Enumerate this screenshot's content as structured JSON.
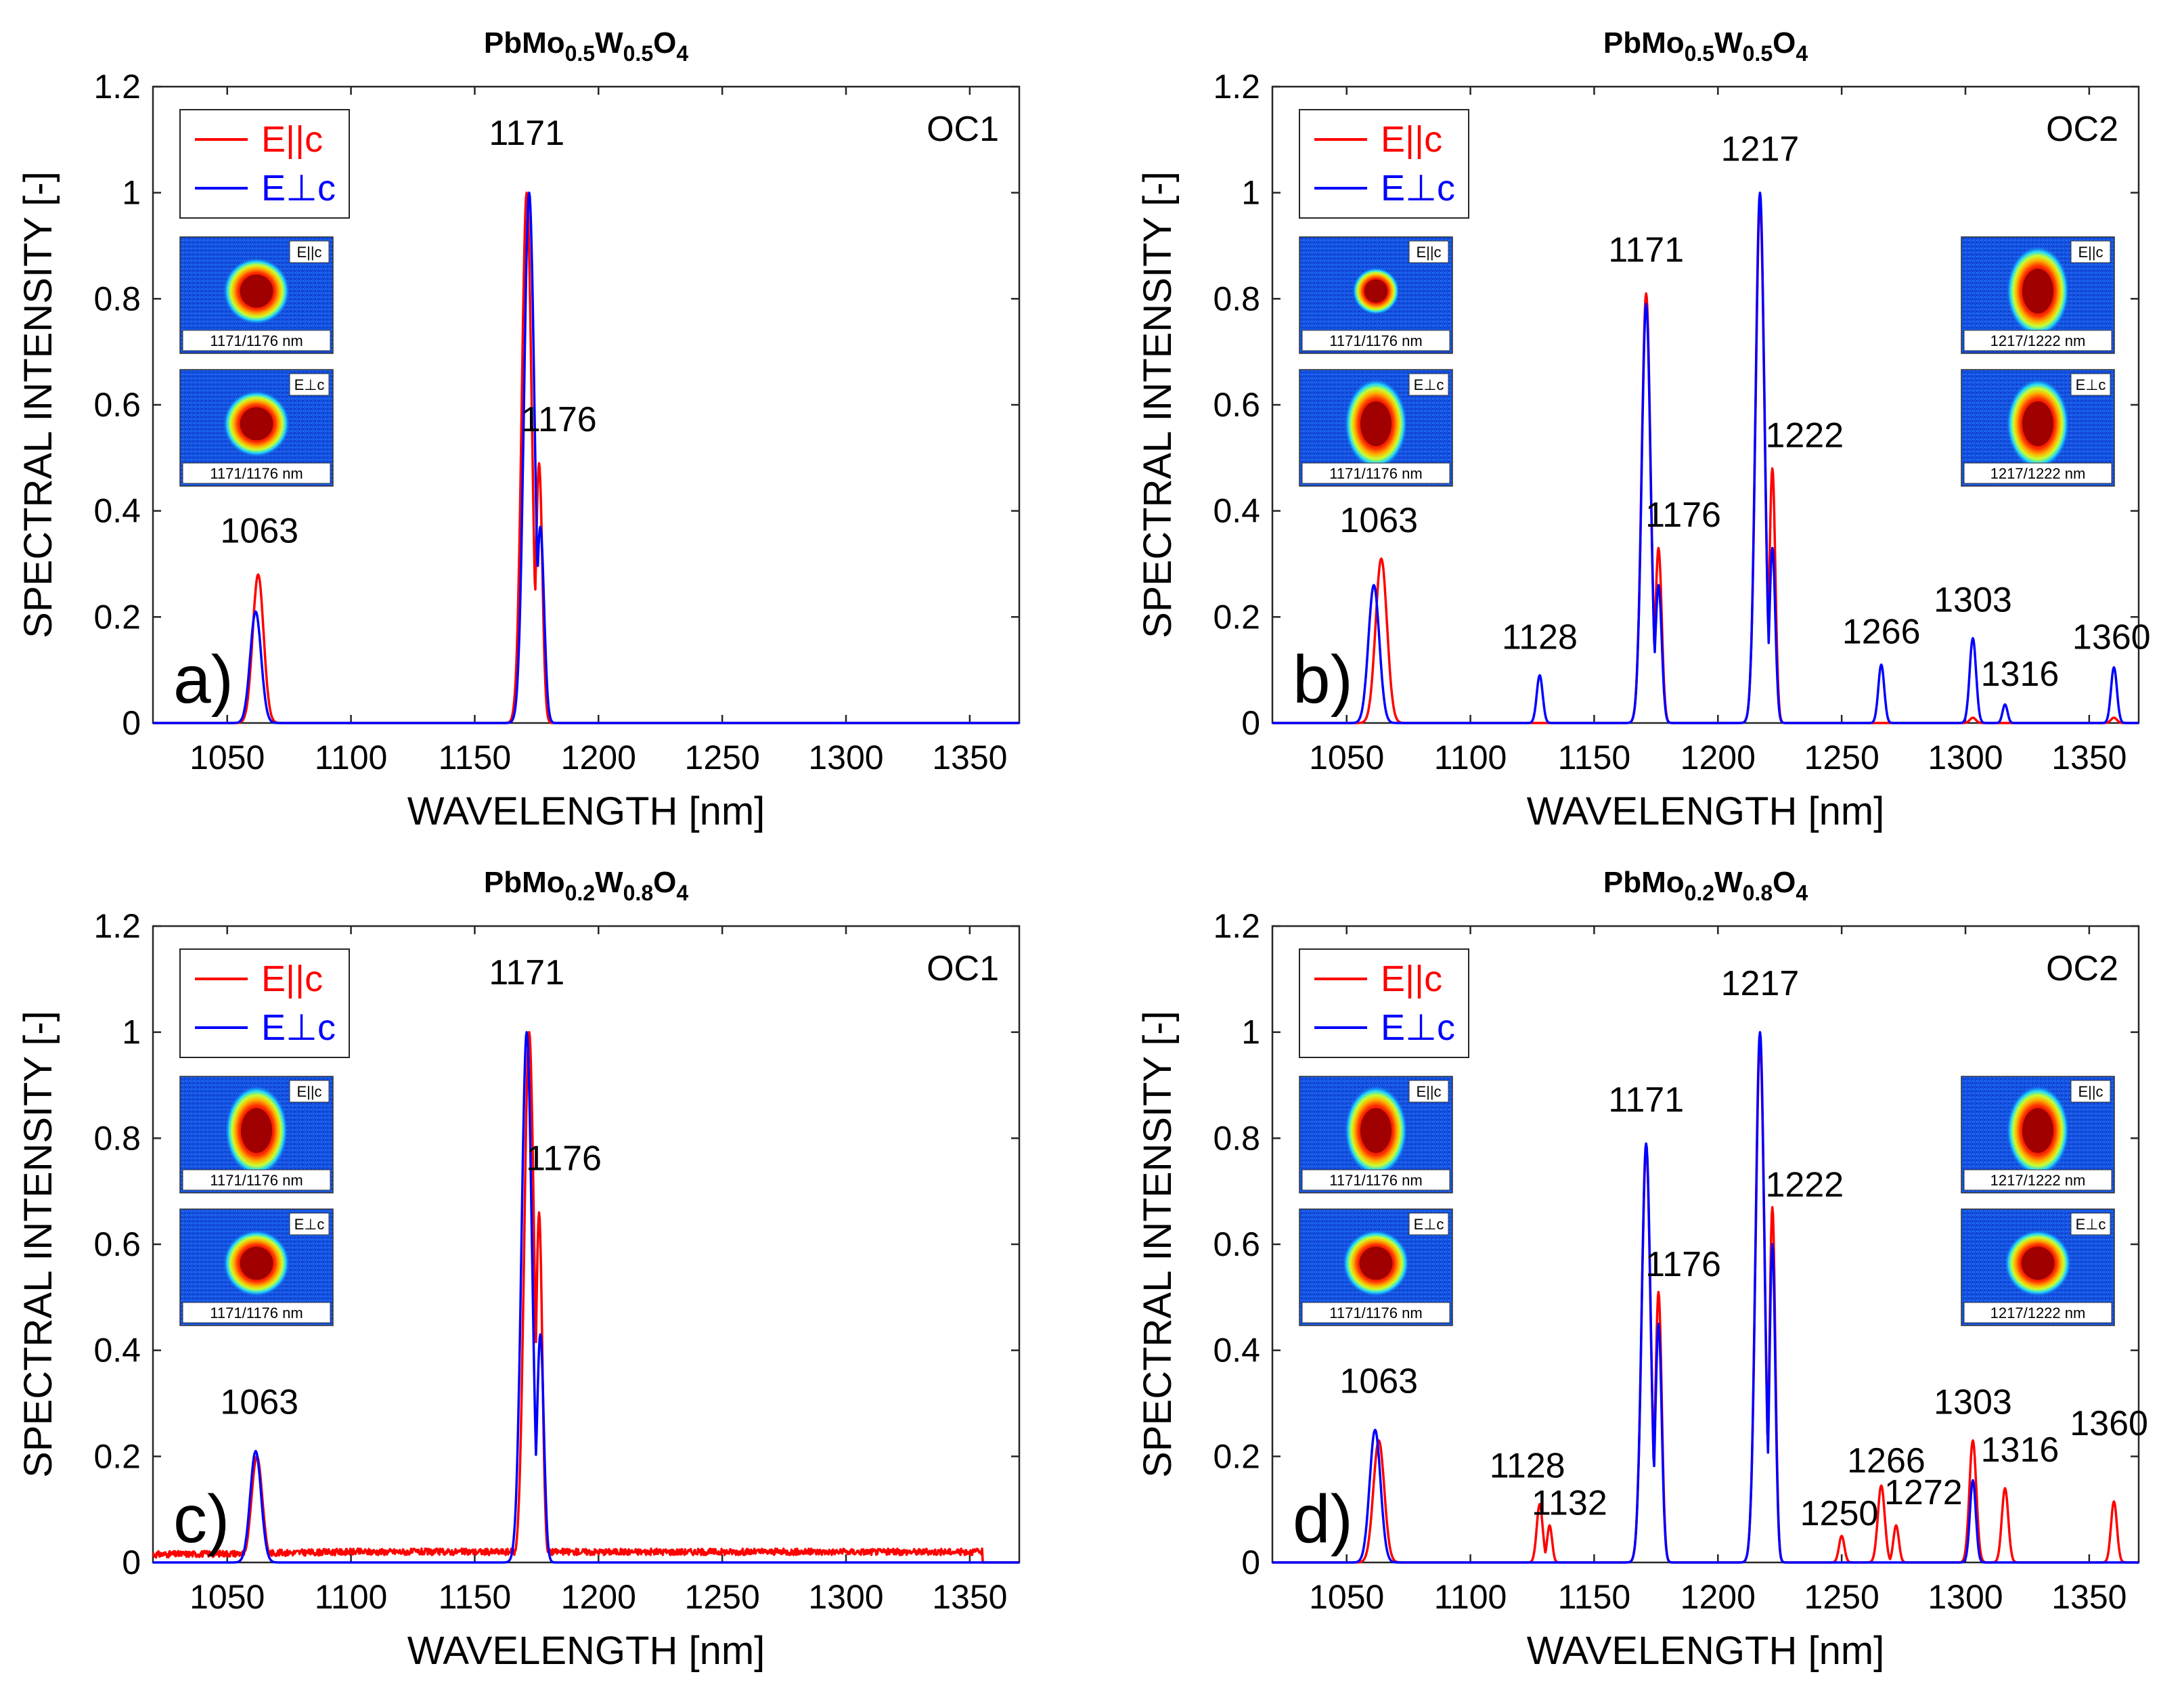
{
  "chart_data": [
    {
      "id": "a",
      "type": "line",
      "title": {
        "prefix": "PbMo",
        "sub1": "0.5",
        "mid1": "W",
        "sub2": "0.5",
        "mid2": "O",
        "sub3": "4"
      },
      "panel_label": "a)",
      "oc_label": "OC1",
      "xlabel": "WAVELENGTH [nm]",
      "ylabel": "SPECTRAL INTENSITY [-]",
      "xlim": [
        1020,
        1370
      ],
      "ylim": [
        0,
        1.2
      ],
      "xticks": [
        "1050",
        "1100",
        "1150",
        "1200",
        "1250",
        "1300",
        "1350"
      ],
      "yticks": [
        "0",
        "0.2",
        "0.4",
        "0.6",
        "0.8",
        "1",
        "1.2"
      ],
      "legend": {
        "red": "E||c",
        "blue": "E⊥c"
      },
      "series": [
        {
          "name": "E||c",
          "color": "#ff0000",
          "baseline": 0,
          "noise": 0,
          "peaks": [
            [
              1062.5,
              0.28,
              2.2
            ],
            [
              1171,
              1.0,
              2.0
            ],
            [
              1176,
              0.49,
              1.3
            ]
          ]
        },
        {
          "name": "E⊥c",
          "color": "#0000ff",
          "baseline": 0,
          "noise": 0,
          "peaks": [
            [
              1061.5,
              0.21,
              2.2
            ],
            [
              1172,
              1.0,
              2.1
            ],
            [
              1176.5,
              0.37,
              1.5
            ]
          ]
        }
      ],
      "annotations": [
        {
          "text": "1063",
          "x": 1063,
          "y": 0.34
        },
        {
          "text": "1171",
          "x": 1171,
          "y": 1.09
        },
        {
          "text": "1176",
          "x": 1184,
          "y": 0.55
        }
      ],
      "beam_images": [
        {
          "tag": "E||c",
          "caption": "1171/1176 nm",
          "shape": "round"
        },
        {
          "tag": "E⊥c",
          "caption": "1171/1176 nm",
          "shape": "round"
        }
      ],
      "beam_images_right": []
    },
    {
      "id": "b",
      "type": "line",
      "title": {
        "prefix": "PbMo",
        "sub1": "0.5",
        "mid1": "W",
        "sub2": "0.5",
        "mid2": "O",
        "sub3": "4"
      },
      "panel_label": "b)",
      "oc_label": "OC2",
      "xlabel": "WAVELENGTH [nm]",
      "ylabel": "SPECTRAL INTENSITY [-]",
      "xlim": [
        1020,
        1370
      ],
      "ylim": [
        0,
        1.2
      ],
      "xticks": [
        "1050",
        "1100",
        "1150",
        "1200",
        "1250",
        "1300",
        "1350"
      ],
      "yticks": [
        "0",
        "0.2",
        "0.4",
        "0.6",
        "0.8",
        "1",
        "1.2"
      ],
      "legend": {
        "red": "E||c",
        "blue": "E⊥c"
      },
      "series": [
        {
          "name": "E||c",
          "color": "#ff0000",
          "baseline": 0,
          "noise": 0,
          "peaks": [
            [
              1064,
              0.31,
              2.3
            ],
            [
              1171,
              0.81,
              1.8
            ],
            [
              1176,
              0.33,
              1.3
            ],
            [
              1217,
              0.98,
              1.8
            ],
            [
              1222,
              0.48,
              1.2
            ],
            [
              1303,
              0.01,
              1.2
            ],
            [
              1360,
              0.01,
              1.2
            ]
          ]
        },
        {
          "name": "E⊥c",
          "color": "#0000ff",
          "baseline": 0,
          "noise": 0,
          "peaks": [
            [
              1061,
              0.26,
              2.2
            ],
            [
              1128,
              0.09,
              1.2
            ],
            [
              1171,
              0.79,
              1.8
            ],
            [
              1176,
              0.26,
              1.3
            ],
            [
              1217,
              1.0,
              1.8
            ],
            [
              1222,
              0.33,
              1.2
            ],
            [
              1266,
              0.11,
              1.2
            ],
            [
              1303,
              0.16,
              1.3
            ],
            [
              1316,
              0.035,
              1.0
            ],
            [
              1360,
              0.105,
              1.2
            ]
          ]
        }
      ],
      "annotations": [
        {
          "text": "1063",
          "x": 1063,
          "y": 0.36
        },
        {
          "text": "1128",
          "x": 1128,
          "y": 0.14
        },
        {
          "text": "1171",
          "x": 1171,
          "y": 0.87
        },
        {
          "text": "1176",
          "x": 1186,
          "y": 0.37
        },
        {
          "text": "1217",
          "x": 1217,
          "y": 1.06
        },
        {
          "text": "1222",
          "x": 1235,
          "y": 0.52
        },
        {
          "text": "1266",
          "x": 1266,
          "y": 0.15
        },
        {
          "text": "1303",
          "x": 1303,
          "y": 0.21
        },
        {
          "text": "1316",
          "x": 1322,
          "y": 0.07
        },
        {
          "text": "1360",
          "x": 1359,
          "y": 0.14
        }
      ],
      "beam_images": [
        {
          "tag": "E||c",
          "caption": "1171/1176 nm",
          "shape": "small"
        },
        {
          "tag": "E⊥c",
          "caption": "1171/1176 nm",
          "shape": "tall"
        }
      ],
      "beam_images_right": [
        {
          "tag": "E||c",
          "caption": "1217/1222 nm",
          "shape": "tall"
        },
        {
          "tag": "E⊥c",
          "caption": "1217/1222 nm",
          "shape": "tall"
        }
      ]
    },
    {
      "id": "c",
      "type": "line",
      "title": {
        "prefix": "PbMo",
        "sub1": "0.2",
        "mid1": "W",
        "sub2": "0.8",
        "mid2": "O",
        "sub3": "4"
      },
      "panel_label": "c)",
      "oc_label": "OC1",
      "xlabel": "WAVELENGTH [nm]",
      "ylabel": "SPECTRAL INTENSITY [-]",
      "xlim": [
        1020,
        1370
      ],
      "ylim": [
        0,
        1.2
      ],
      "xticks": [
        "1050",
        "1100",
        "1150",
        "1200",
        "1250",
        "1300",
        "1350"
      ],
      "yticks": [
        "0",
        "0.2",
        "0.4",
        "0.6",
        "0.8",
        "1",
        "1.2"
      ],
      "legend": {
        "red": "E||c",
        "blue": "E⊥c"
      },
      "series": [
        {
          "name": "E||c",
          "color": "#ff0000",
          "baseline": 0.02,
          "noise": 0.006,
          "baseline_range": [
            1020,
            1355
          ],
          "peaks": [
            [
              1062,
              0.2,
              2.2
            ],
            [
              1172,
              1.0,
              2.0
            ],
            [
              1176,
              0.66,
              1.3
            ]
          ]
        },
        {
          "name": "E⊥c",
          "color": "#0000ff",
          "baseline": 0,
          "noise": 0,
          "peaks": [
            [
              1061.5,
              0.21,
              2.2
            ],
            [
              1171,
              1.0,
              2.1
            ],
            [
              1176.5,
              0.43,
              1.4
            ]
          ]
        }
      ],
      "annotations": [
        {
          "text": "1063",
          "x": 1063,
          "y": 0.28
        },
        {
          "text": "1171",
          "x": 1171,
          "y": 1.09
        },
        {
          "text": "1176",
          "x": 1186,
          "y": 0.74
        }
      ],
      "beam_images": [
        {
          "tag": "E||c",
          "caption": "1171/1176 nm",
          "shape": "tall"
        },
        {
          "tag": "E⊥c",
          "caption": "1171/1176 nm",
          "shape": "round"
        }
      ],
      "beam_images_right": []
    },
    {
      "id": "d",
      "type": "line",
      "title": {
        "prefix": "PbMo",
        "sub1": "0.2",
        "mid1": "W",
        "sub2": "0.8",
        "mid2": "O",
        "sub3": "4"
      },
      "panel_label": "d)",
      "oc_label": "OC2",
      "xlabel": "WAVELENGTH [nm]",
      "ylabel": "SPECTRAL INTENSITY [-]",
      "xlim": [
        1020,
        1370
      ],
      "ylim": [
        0,
        1.2
      ],
      "xticks": [
        "1050",
        "1100",
        "1150",
        "1200",
        "1250",
        "1300",
        "1350"
      ],
      "yticks": [
        "0",
        "0.2",
        "0.4",
        "0.6",
        "0.8",
        "1",
        "1.2"
      ],
      "legend": {
        "red": "E||c",
        "blue": "E⊥c"
      },
      "series": [
        {
          "name": "E||c",
          "color": "#ff0000",
          "baseline": 0,
          "noise": 0,
          "peaks": [
            [
              1063,
              0.23,
              2.2
            ],
            [
              1128,
              0.11,
              1.2
            ],
            [
              1132,
              0.07,
              1.0
            ],
            [
              1171,
              0.78,
              1.8
            ],
            [
              1176,
              0.51,
              1.3
            ],
            [
              1217,
              0.98,
              1.8
            ],
            [
              1222,
              0.67,
              1.2
            ],
            [
              1250,
              0.05,
              1.1
            ],
            [
              1266,
              0.145,
              1.4
            ],
            [
              1272,
              0.07,
              1.1
            ],
            [
              1303,
              0.23,
              1.4
            ],
            [
              1316,
              0.14,
              1.3
            ],
            [
              1360,
              0.115,
              1.2
            ]
          ]
        },
        {
          "name": "E⊥c",
          "color": "#0000ff",
          "baseline": 0,
          "noise": 0,
          "peaks": [
            [
              1061.5,
              0.25,
              2.2
            ],
            [
              1171,
              0.79,
              1.8
            ],
            [
              1176,
              0.45,
              1.3
            ],
            [
              1217,
              1.0,
              1.8
            ],
            [
              1222,
              0.6,
              1.2
            ],
            [
              1303,
              0.155,
              1.2
            ]
          ]
        }
      ],
      "annotations": [
        {
          "text": "1063",
          "x": 1063,
          "y": 0.32
        },
        {
          "text": "1128",
          "x": 1123,
          "y": 0.16
        },
        {
          "text": "1132",
          "x": 1140,
          "y": 0.09
        },
        {
          "text": "1171",
          "x": 1171,
          "y": 0.85
        },
        {
          "text": "1176",
          "x": 1186,
          "y": 0.54
        },
        {
          "text": "1217",
          "x": 1217,
          "y": 1.07
        },
        {
          "text": "1222",
          "x": 1235,
          "y": 0.69
        },
        {
          "text": "1250",
          "x": 1249,
          "y": 0.07
        },
        {
          "text": "1266",
          "x": 1268,
          "y": 0.17
        },
        {
          "text": "1272",
          "x": 1283,
          "y": 0.11
        },
        {
          "text": "1303",
          "x": 1303,
          "y": 0.28
        },
        {
          "text": "1316",
          "x": 1322,
          "y": 0.19
        },
        {
          "text": "1360",
          "x": 1358,
          "y": 0.24
        }
      ],
      "beam_images": [
        {
          "tag": "E||c",
          "caption": "1171/1176 nm",
          "shape": "tall"
        },
        {
          "tag": "E⊥c",
          "caption": "1171/1176 nm",
          "shape": "round"
        }
      ],
      "beam_images_right": [
        {
          "tag": "E||c",
          "caption": "1217/1222 nm",
          "shape": "tall"
        },
        {
          "tag": "E⊥c",
          "caption": "1217/1222 nm",
          "shape": "round"
        }
      ]
    }
  ]
}
